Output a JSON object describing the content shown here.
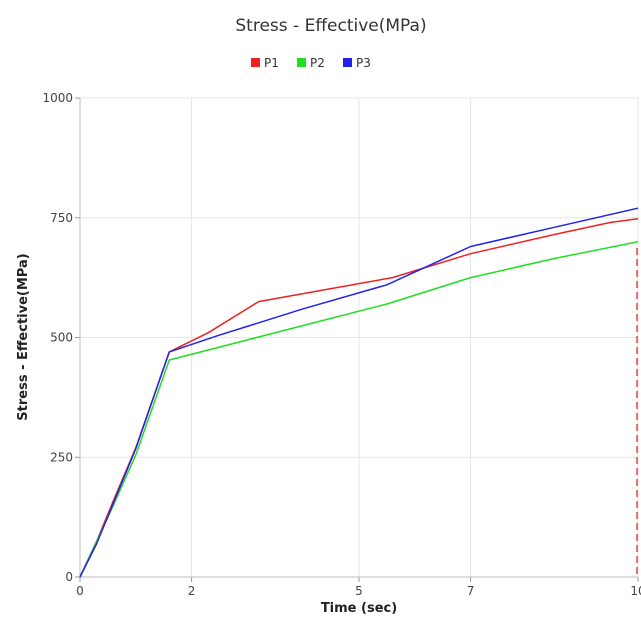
{
  "chart_data": {
    "type": "line",
    "title": "Stress - Effective(MPa)",
    "xlabel": "Time (sec)",
    "ylabel": "Stress - Effective(MPa)",
    "xlim": [
      0,
      10
    ],
    "ylim": [
      0,
      1000
    ],
    "x_ticks": [
      0,
      2,
      5,
      7,
      10
    ],
    "x_tick_labels": [
      "0",
      "2",
      "5",
      "7",
      "10"
    ],
    "y_ticks": [
      0,
      250,
      500,
      750,
      1000
    ],
    "y_tick_labels": [
      "0",
      "250",
      "500",
      "750",
      "1000"
    ],
    "grid": true,
    "legend_position": "top-center",
    "marker_line": {
      "x": 10,
      "color": "#e03030",
      "style": "dashed"
    },
    "series": [
      {
        "name": "P1",
        "color": "#ee2222",
        "points": [
          [
            0,
            0
          ],
          [
            0.3,
            75
          ],
          [
            0.6,
            160
          ],
          [
            1.0,
            270
          ],
          [
            1.6,
            470
          ],
          [
            2.3,
            510
          ],
          [
            3.2,
            575
          ],
          [
            4.4,
            600
          ],
          [
            5.6,
            625
          ],
          [
            7.0,
            675
          ],
          [
            8.5,
            715
          ],
          [
            9.5,
            740
          ],
          [
            10,
            748
          ]
        ]
      },
      {
        "name": "P2",
        "color": "#22dd22",
        "points": [
          [
            0,
            0
          ],
          [
            0.6,
            150
          ],
          [
            1.0,
            255
          ],
          [
            1.6,
            453
          ],
          [
            2.5,
            480
          ],
          [
            4.0,
            525
          ],
          [
            5.5,
            570
          ],
          [
            7.0,
            625
          ],
          [
            8.5,
            665
          ],
          [
            10,
            700
          ]
        ]
      },
      {
        "name": "P3",
        "color": "#2222ee",
        "points": [
          [
            0,
            0
          ],
          [
            0.3,
            70
          ],
          [
            0.6,
            155
          ],
          [
            1.0,
            268
          ],
          [
            1.6,
            470
          ],
          [
            2.5,
            505
          ],
          [
            4.0,
            560
          ],
          [
            5.5,
            610
          ],
          [
            7.0,
            690
          ],
          [
            8.5,
            730
          ],
          [
            10,
            770
          ]
        ]
      }
    ]
  }
}
